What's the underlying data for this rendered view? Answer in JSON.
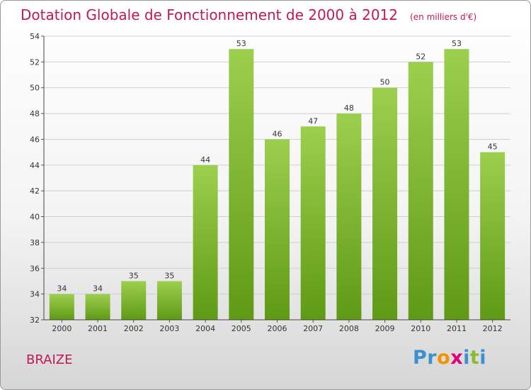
{
  "header": {
    "title": "Dotation Globale de Fonctionnement de 2000 à 2012",
    "unit": "(en milliers d'€)"
  },
  "commune": "BRAIZE",
  "logo": "Proxiti",
  "colors": {
    "accent": "#c2185b",
    "bar_top": "#9ccf4e",
    "bar_bottom": "#5f9a14",
    "grid": "#cfcfcf"
  },
  "chart_data": {
    "type": "bar",
    "categories": [
      "2000",
      "2001",
      "2002",
      "2003",
      "2004",
      "2005",
      "2006",
      "2007",
      "2008",
      "2009",
      "2010",
      "2011",
      "2012"
    ],
    "values": [
      34,
      34,
      35,
      35,
      44,
      53,
      46,
      47,
      48,
      50,
      52,
      53,
      45
    ],
    "title": "Dotation Globale de Fonctionnement de 2000 à 2012",
    "ylim": [
      32,
      54
    ],
    "yticks": [
      32,
      34,
      36,
      38,
      40,
      42,
      44,
      46,
      48,
      50,
      52,
      54
    ],
    "grid": true
  }
}
